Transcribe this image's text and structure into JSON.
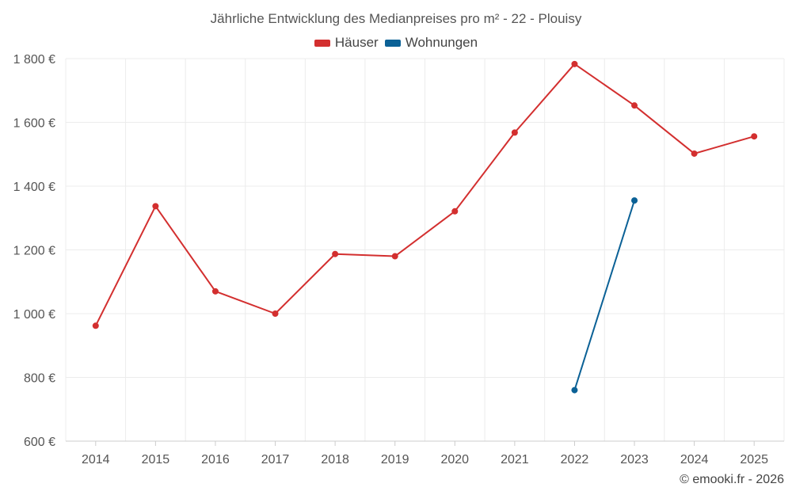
{
  "chart_data": {
    "type": "line",
    "title": "Jährliche Entwicklung des Medianpreises pro m² - 22 - Plouisy",
    "categories": [
      "2014",
      "2015",
      "2016",
      "2017",
      "2018",
      "2019",
      "2020",
      "2021",
      "2022",
      "2023",
      "2024",
      "2025"
    ],
    "series": [
      {
        "name": "Häuser",
        "color": "#d32f2f",
        "values": [
          962,
          1337,
          1070,
          1000,
          1187,
          1180,
          1321,
          1568,
          1783,
          1653,
          1502,
          1556
        ]
      },
      {
        "name": "Wohnungen",
        "color": "#0b6196",
        "values": [
          null,
          null,
          null,
          null,
          null,
          null,
          null,
          null,
          760,
          1355,
          null,
          null
        ]
      }
    ],
    "ylim": [
      600,
      1800
    ],
    "yticks": [
      600,
      800,
      1000,
      1200,
      1400,
      1600,
      1800
    ],
    "ytick_labels": [
      "600 €",
      "800 €",
      "1 000 €",
      "1 200 €",
      "1 400 €",
      "1 600 €",
      "1 800 €"
    ],
    "xlabel": "",
    "ylabel": "",
    "grid": true,
    "legend_position": "top-center"
  },
  "footer": {
    "credit": "© emooki.fr - 2026"
  }
}
